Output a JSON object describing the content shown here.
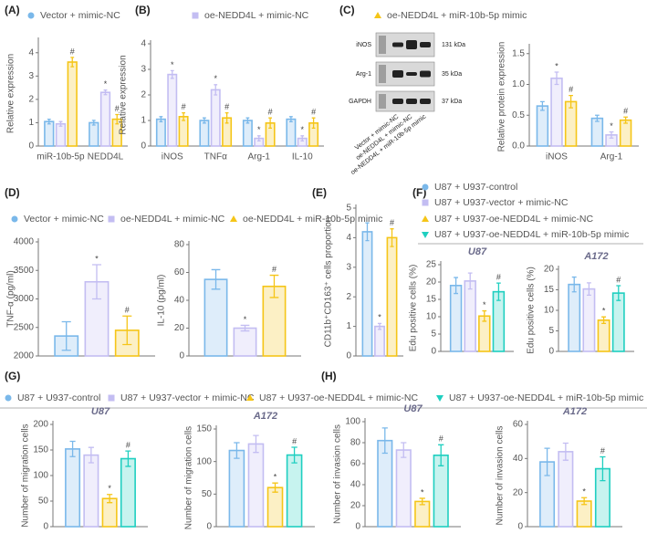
{
  "chart_data": [
    {
      "type": "bar",
      "panel": "(A)",
      "legend": true,
      "ylabel": "Relative expression",
      "categories": [
        "miR-10b-5p",
        "NEDD4L"
      ],
      "ylim": [
        0,
        4.5
      ],
      "yticks": [
        0,
        1,
        2,
        3,
        4
      ],
      "series": [
        {
          "name": "Vector + mimic-NC",
          "color": "#7ab8ea",
          "values": [
            1.05,
            1.0
          ],
          "errors": [
            0.1,
            0.1
          ],
          "sig": [
            null,
            null
          ]
        },
        {
          "name": "oe-NEDD4L + mimic-NC",
          "color": "#c3bdf2",
          "values": [
            0.95,
            2.3
          ],
          "errors": [
            0.1,
            0.1
          ],
          "sig": [
            null,
            "*"
          ]
        },
        {
          "name": "oe-NEDD4L + miR-10b-5p mimic",
          "color": "#f5c518",
          "values": [
            3.6,
            1.15
          ],
          "errors": [
            0.2,
            0.2
          ],
          "sig": [
            "#",
            "#"
          ]
        }
      ]
    },
    {
      "type": "bar",
      "panel": "(B)",
      "ylabel": "Relative expression",
      "categories": [
        "iNOS",
        "TNFα",
        "Arg-1",
        "IL-10"
      ],
      "ylim": [
        0,
        4
      ],
      "yticks": [
        0,
        1,
        2,
        3,
        4
      ],
      "series": [
        {
          "color": "#7ab8ea",
          "values": [
            1.05,
            1.0,
            1.0,
            1.05
          ],
          "errors": [
            0.1,
            0.1,
            0.1,
            0.1
          ],
          "sig": [
            null,
            null,
            null,
            null
          ]
        },
        {
          "color": "#c3bdf2",
          "values": [
            2.8,
            2.2,
            0.3,
            0.3
          ],
          "errors": [
            0.15,
            0.2,
            0.1,
            0.1
          ],
          "sig": [
            "*",
            "*",
            "*",
            "*"
          ]
        },
        {
          "color": "#f5c518",
          "values": [
            1.15,
            1.1,
            0.9,
            0.9
          ],
          "errors": [
            0.15,
            0.2,
            0.2,
            0.2
          ],
          "sig": [
            "#",
            "#",
            "#",
            "#"
          ]
        }
      ]
    },
    {
      "type": "bar",
      "panel": "(C)",
      "ylabel": "Relative protein expression",
      "categories": [
        "iNOS",
        "Arg-1"
      ],
      "ylim": [
        0,
        1.6
      ],
      "yticks": [
        {
          "value": 0,
          "label": "0.0"
        },
        {
          "value": 0.5,
          "label": "0.5"
        },
        {
          "value": 1,
          "label": "1.0"
        },
        {
          "value": 1.5,
          "label": "1.5"
        }
      ],
      "blot": {
        "bands": [
          "iNOS",
          "Arg-1",
          "GAPDH"
        ],
        "sizes": [
          "131 kDa",
          "35 kDa",
          "37 kDa"
        ],
        "lanes": [
          "Vector + mimic-NC",
          "oe-NEDD4L + mimic-NC",
          "oe-NEDD4L + miR-10b-5p mimic"
        ]
      },
      "series": [
        {
          "color": "#7ab8ea",
          "values": [
            0.65,
            0.45
          ],
          "errors": [
            0.07,
            0.05
          ],
          "sig": [
            null,
            null
          ]
        },
        {
          "color": "#c3bdf2",
          "values": [
            1.1,
            0.18
          ],
          "errors": [
            0.1,
            0.05
          ],
          "sig": [
            "*",
            "*"
          ]
        },
        {
          "color": "#f5c518",
          "values": [
            0.72,
            0.42
          ],
          "errors": [
            0.1,
            0.05
          ],
          "sig": [
            "#",
            "#"
          ]
        }
      ]
    },
    {
      "type": "bar",
      "panel": "(D)",
      "legend": true,
      "ylabel": "TNF-α (pg/ml)",
      "categories": [
        null
      ],
      "ylim": [
        2000,
        4000
      ],
      "yticks": [
        2000,
        2500,
        3000,
        3500,
        4000
      ],
      "series": [
        {
          "name": "Vector + mimic-NC",
          "color": "#7ab8ea",
          "values": [
            2350
          ],
          "errors": [
            250
          ],
          "sig": [
            null
          ]
        },
        {
          "name": "oe-NEDD4L + mimic-NC",
          "color": "#c3bdf2",
          "values": [
            3300
          ],
          "errors": [
            300
          ],
          "sig": [
            "*"
          ]
        },
        {
          "name": "oe-NEDD4L + miR-10b-5p mimic",
          "color": "#f5c518",
          "values": [
            2450
          ],
          "errors": [
            250
          ],
          "sig": [
            "#"
          ]
        }
      ]
    },
    {
      "type": "bar",
      "ylabel": "IL-10 (pg/ml)",
      "categories": [
        null
      ],
      "ylim": [
        0,
        80
      ],
      "yticks": [
        0,
        20,
        40,
        60,
        80
      ],
      "series": [
        {
          "color": "#7ab8ea",
          "values": [
            55
          ],
          "errors": [
            7
          ],
          "sig": [
            null
          ]
        },
        {
          "color": "#c3bdf2",
          "values": [
            20
          ],
          "errors": [
            2
          ],
          "sig": [
            "*"
          ]
        },
        {
          "color": "#f5c518",
          "values": [
            50
          ],
          "errors": [
            8
          ],
          "sig": [
            "#"
          ]
        }
      ]
    },
    {
      "type": "bar",
      "panel": "(E)",
      "ylabel": "CD11b⁺CD163⁺ cells proportion",
      "categories": [
        null
      ],
      "ylim": [
        0,
        5
      ],
      "yticks": [
        0,
        1,
        2,
        3,
        4,
        5
      ],
      "series": [
        {
          "color": "#7ab8ea",
          "values": [
            4.2
          ],
          "errors": [
            0.3
          ],
          "sig": [
            null
          ]
        },
        {
          "color": "#c3bdf2",
          "values": [
            1.0
          ],
          "errors": [
            0.1
          ],
          "sig": [
            "*"
          ]
        },
        {
          "color": "#f5c518",
          "values": [
            4.0
          ],
          "errors": [
            0.3
          ],
          "sig": [
            "#"
          ]
        }
      ]
    },
    {
      "type": "bar",
      "panel": "(F)",
      "legend": true,
      "title": "U87",
      "ylabel": "Edu positive cells (%)",
      "categories": [
        null
      ],
      "ylim": [
        0,
        25
      ],
      "yticks": [
        0,
        5,
        10,
        15,
        20,
        25
      ],
      "series": [
        {
          "name": "U87 + U937-control",
          "color": "#7ab8ea",
          "values": [
            19
          ],
          "errors": [
            2.3
          ],
          "sig": [
            null
          ]
        },
        {
          "name": "U87 + U937-vector + mimic-NC",
          "color": "#c3bdf2",
          "values": [
            20.3
          ],
          "errors": [
            2.3
          ],
          "sig": [
            null
          ]
        },
        {
          "name": "U87 + U937-oe-NEDD4L + mimic-NC",
          "color": "#f5c518",
          "values": [
            10.2
          ],
          "errors": [
            1.5
          ],
          "sig": [
            "*"
          ]
        },
        {
          "name": "U87 + U937-oe-NEDD4L + miR-10b-5p mimic",
          "color": "#1fcfc0",
          "values": [
            17.2
          ],
          "errors": [
            2.5
          ],
          "sig": [
            "#"
          ]
        }
      ]
    },
    {
      "type": "bar",
      "title": "A172",
      "ylabel": "Edu positive cells (%)",
      "categories": [
        null
      ],
      "ylim": [
        0,
        20
      ],
      "yticks": [
        0,
        5,
        10,
        15,
        20
      ],
      "series": [
        {
          "color": "#7ab8ea",
          "values": [
            16.3
          ],
          "errors": [
            1.8
          ],
          "sig": [
            null
          ]
        },
        {
          "color": "#c3bdf2",
          "values": [
            15.2
          ],
          "errors": [
            1.5
          ],
          "sig": [
            null
          ]
        },
        {
          "color": "#f5c518",
          "values": [
            7.6
          ],
          "errors": [
            0.8
          ],
          "sig": [
            "*"
          ]
        },
        {
          "color": "#1fcfc0",
          "values": [
            14.2
          ],
          "errors": [
            1.8
          ],
          "sig": [
            "#"
          ]
        }
      ]
    },
    {
      "type": "bar",
      "panel": "(G)",
      "legend": true,
      "title": "U87",
      "ylabel": "Number of migration cells",
      "categories": [
        null
      ],
      "ylim": [
        0,
        200
      ],
      "yticks": [
        0,
        50,
        100,
        150,
        200
      ],
      "series": [
        {
          "name": "U87 + U937-control",
          "color": "#7ab8ea",
          "values": [
            152
          ],
          "errors": [
            15
          ],
          "sig": [
            null
          ]
        },
        {
          "name": "U87 + U937-vector + mimic-NC",
          "color": "#c3bdf2",
          "values": [
            140
          ],
          "errors": [
            15
          ],
          "sig": [
            null
          ]
        },
        {
          "name": "U87 + U937-oe-NEDD4L + mimic-NC",
          "color": "#f5c518",
          "values": [
            55
          ],
          "errors": [
            8
          ],
          "sig": [
            "*"
          ]
        },
        {
          "name": "U87 + U937-oe-NEDD4L + miR-10b-5p mimic",
          "color": "#1fcfc0",
          "values": [
            133
          ],
          "errors": [
            15
          ],
          "sig": [
            "#"
          ]
        }
      ]
    },
    {
      "type": "bar",
      "title": "A172",
      "ylabel": "Number of migration cells",
      "categories": [
        null
      ],
      "ylim": [
        0,
        150
      ],
      "yticks": [
        0,
        50,
        100,
        150
      ],
      "series": [
        {
          "color": "#7ab8ea",
          "values": [
            117
          ],
          "errors": [
            12
          ],
          "sig": [
            null
          ]
        },
        {
          "color": "#c3bdf2",
          "values": [
            127
          ],
          "errors": [
            13
          ],
          "sig": [
            null
          ]
        },
        {
          "color": "#f5c518",
          "values": [
            60
          ],
          "errors": [
            7
          ],
          "sig": [
            "*"
          ]
        },
        {
          "color": "#1fcfc0",
          "values": [
            110
          ],
          "errors": [
            12
          ],
          "sig": [
            "#"
          ]
        }
      ]
    },
    {
      "type": "bar",
      "panel": "(H)",
      "title": "U87",
      "ylabel": "Number of invasion cells",
      "categories": [
        null
      ],
      "ylim": [
        0,
        100
      ],
      "yticks": [
        0,
        20,
        40,
        60,
        80,
        100
      ],
      "series": [
        {
          "color": "#7ab8ea",
          "values": [
            82
          ],
          "errors": [
            12
          ],
          "sig": [
            null
          ]
        },
        {
          "color": "#c3bdf2",
          "values": [
            73
          ],
          "errors": [
            7
          ],
          "sig": [
            null
          ]
        },
        {
          "color": "#f5c518",
          "values": [
            24
          ],
          "errors": [
            3
          ],
          "sig": [
            "*"
          ]
        },
        {
          "color": "#1fcfc0",
          "values": [
            68
          ],
          "errors": [
            10
          ],
          "sig": [
            "#"
          ]
        }
      ]
    },
    {
      "type": "bar",
      "title": "A172",
      "ylabel": "Number of invasion cells",
      "categories": [
        null
      ],
      "ylim": [
        0,
        60
      ],
      "yticks": [
        0,
        20,
        40,
        60
      ],
      "series": [
        {
          "color": "#7ab8ea",
          "values": [
            38
          ],
          "errors": [
            8
          ],
          "sig": [
            null
          ]
        },
        {
          "color": "#c3bdf2",
          "values": [
            44
          ],
          "errors": [
            5
          ],
          "sig": [
            null
          ]
        },
        {
          "color": "#f5c518",
          "values": [
            15
          ],
          "errors": [
            2
          ],
          "sig": [
            "*"
          ]
        },
        {
          "color": "#1fcfc0",
          "values": [
            34
          ],
          "errors": [
            7
          ],
          "sig": [
            "#"
          ]
        }
      ]
    }
  ]
}
